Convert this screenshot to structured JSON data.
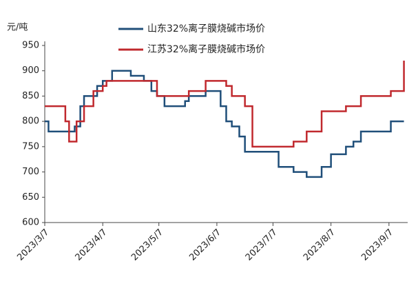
{
  "chart_data": {
    "type": "line",
    "y_unit": "元/吨",
    "x": [
      "2023/3/7",
      "2023/3/9",
      "2023/3/18",
      "2023/3/20",
      "2023/3/23",
      "2023/3/24",
      "2023/3/26",
      "2023/3/28",
      "2023/4/2",
      "2023/4/4",
      "2023/4/7",
      "2023/4/9",
      "2023/4/12",
      "2023/4/22",
      "2023/4/29",
      "2023/5/3",
      "2023/5/6",
      "2023/5/10",
      "2023/5/21",
      "2023/5/23",
      "2023/6/1",
      "2023/6/9",
      "2023/6/12",
      "2023/6/15",
      "2023/6/19",
      "2023/6/22",
      "2023/6/26",
      "2023/7/10",
      "2023/7/18",
      "2023/7/25",
      "2023/8/2",
      "2023/8/7",
      "2023/8/15",
      "2023/8/19",
      "2023/8/23",
      "2023/9/8",
      "2023/9/15"
    ],
    "series": [
      {
        "name": "山东32%离子膜烧碱市场价",
        "color": "#1f4e79",
        "values": [
          800,
          780,
          780,
          780,
          790,
          790,
          830,
          850,
          850,
          870,
          880,
          880,
          900,
          890,
          880,
          860,
          850,
          830,
          840,
          850,
          860,
          830,
          800,
          790,
          770,
          740,
          740,
          710,
          700,
          690,
          710,
          735,
          750,
          760,
          780,
          800,
          800
        ]
      },
      {
        "name": "江苏32%离子膜烧碱市场价",
        "color": "#c0282d",
        "values": [
          830,
          830,
          800,
          760,
          760,
          800,
          800,
          830,
          860,
          860,
          870,
          880,
          880,
          880,
          880,
          880,
          850,
          850,
          850,
          860,
          880,
          880,
          870,
          850,
          850,
          830,
          750,
          750,
          760,
          780,
          820,
          820,
          830,
          830,
          850,
          860,
          920
        ]
      }
    ],
    "xlim": [
      "2023/3/7",
      "2023/9/17"
    ],
    "xticks": [
      "2023/3/7",
      "2023/4/7",
      "2023/5/7",
      "2023/6/7",
      "2023/7/7",
      "2023/8/7",
      "2023/9/7"
    ],
    "ylim": [
      600,
      950
    ],
    "yticks": [
      600,
      650,
      700,
      750,
      800,
      850,
      900,
      950
    ],
    "step": true
  }
}
